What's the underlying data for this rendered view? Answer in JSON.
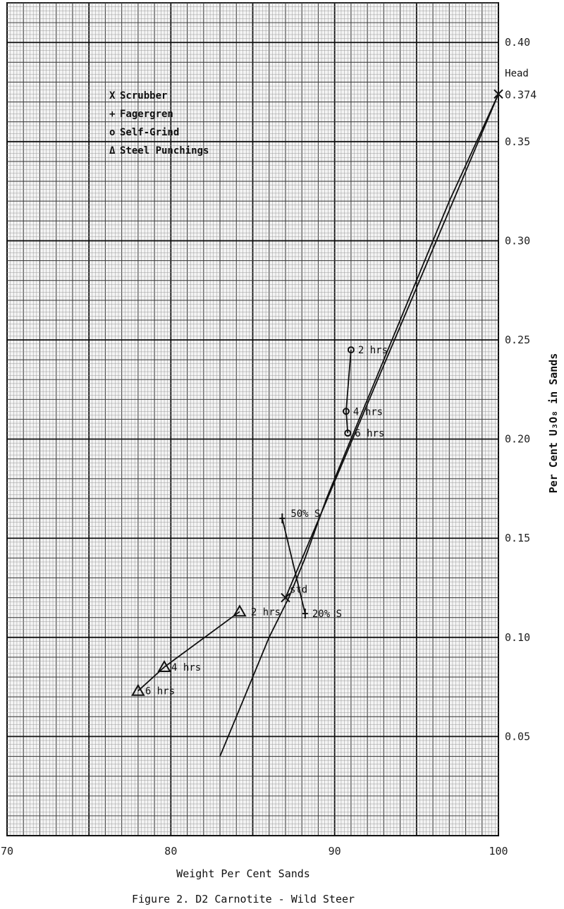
{
  "caption": "Figure 2. D2 Carnotite - Wild Steer",
  "chart_data": {
    "type": "line",
    "title": "",
    "xlabel": "Weight Per Cent Sands",
    "ylabel": "Per Cent U₃O₈ in Sands",
    "xlim": [
      70,
      100
    ],
    "ylim": [
      0,
      0.42
    ],
    "xticks": [
      "70",
      "80",
      "90",
      "100"
    ],
    "yticks": [
      "0.05",
      "0.10",
      "0.15",
      "0.20",
      "0.25",
      "0.30",
      "0.35",
      "0.40"
    ],
    "grid": true,
    "legend_position": "top-left",
    "legend": [
      {
        "symbol": "X",
        "label": "Scrubber"
      },
      {
        "symbol": "+",
        "label": "Fagergren"
      },
      {
        "symbol": "o",
        "label": "Self-Grind"
      },
      {
        "symbol": "Δ",
        "label": "Steel Punchings"
      }
    ],
    "series": [
      {
        "name": "Scrubber",
        "marker": "x",
        "x": [
          100,
          87
        ],
        "y": [
          0.374,
          0.12
        ],
        "labels": [
          "Head",
          "std"
        ]
      },
      {
        "name": "Fagergren",
        "marker": "+",
        "x": [
          86.8,
          88.2
        ],
        "y": [
          0.16,
          0.112
        ],
        "labels": [
          "50% S",
          "20% S"
        ]
      },
      {
        "name": "Self-Grind",
        "marker": "o",
        "x": [
          91.0,
          90.7,
          90.8
        ],
        "y": [
          0.245,
          0.214,
          0.203
        ],
        "labels": [
          "2 hrs",
          "4 hrs",
          "6 hrs"
        ]
      },
      {
        "name": "Steel Punchings",
        "marker": "triangle",
        "x": [
          84.2,
          79.6,
          78.0
        ],
        "y": [
          0.113,
          0.085,
          0.073
        ],
        "labels": [
          "2 hrs",
          "4 hrs",
          "6 hrs"
        ]
      }
    ],
    "trend_curve": {
      "x": [
        83.0,
        84.5,
        86.0,
        87.2,
        88.2,
        89.5,
        91.0,
        92.5,
        94.5,
        97.0,
        100.0
      ],
      "y": [
        0.04,
        0.07,
        0.1,
        0.12,
        0.14,
        0.17,
        0.2,
        0.23,
        0.27,
        0.32,
        0.374
      ]
    },
    "head_value_label": "0.374"
  }
}
